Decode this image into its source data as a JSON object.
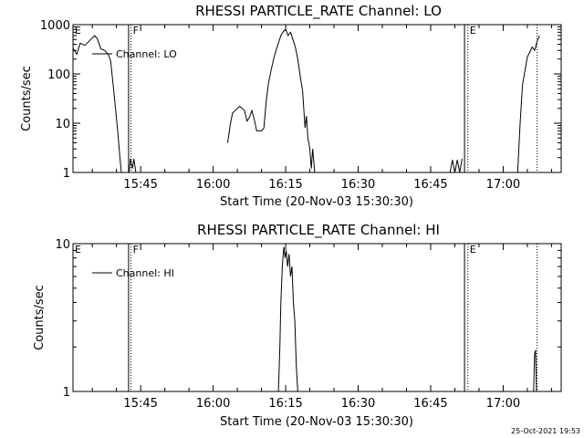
{
  "chart_data": [
    {
      "type": "line",
      "title": "RHESSI PARTICLE_RATE Channel: LO",
      "xlabel": "Start Time (20-Nov-03 15:30:30)",
      "ylabel": "Counts/sec",
      "yscale": "log",
      "ylim": [
        1,
        1000
      ],
      "xlim": [
        "15:31",
        "17:12"
      ],
      "grid": false,
      "legend": {
        "position": "top-left",
        "label": "Channel: LO"
      },
      "x_ticks": [
        {
          "t": "15:45",
          "label": "15:45"
        },
        {
          "t": "16:00",
          "label": "16:00"
        },
        {
          "t": "16:15",
          "label": "16:15"
        },
        {
          "t": "16:30",
          "label": "16:30"
        },
        {
          "t": "16:45",
          "label": "16:45"
        },
        {
          "t": "17:00",
          "label": "17:00"
        }
      ],
      "y_ticks": [
        {
          "v": 1,
          "label": "1"
        },
        {
          "v": 10,
          "label": "10"
        },
        {
          "v": 100,
          "label": "100"
        },
        {
          "v": 1000,
          "label": "1000"
        }
      ],
      "markers": [
        {
          "t": "15:31",
          "label": "E",
          "style": "solid"
        },
        {
          "t": "15:42.5",
          "label": "",
          "style": "solid"
        },
        {
          "t": "15:43",
          "label": "F",
          "style": "dotted"
        },
        {
          "t": "16:52",
          "label": "",
          "style": "solid"
        },
        {
          "t": "16:52.7",
          "label": "E",
          "style": "dotted"
        },
        {
          "t": "17:07",
          "label": "",
          "style": "dotted"
        }
      ],
      "series": [
        {
          "name": "Channel: LO",
          "points": [
            [
              "15:31",
              330
            ],
            [
              "15:31.8",
              250
            ],
            [
              "15:32.5",
              420
            ],
            [
              "15:33.5",
              380
            ],
            [
              "15:34.5",
              480
            ],
            [
              "15:35.5",
              600
            ],
            [
              "15:36",
              520
            ],
            [
              "15:36.8",
              320
            ],
            [
              "15:37.5",
              300
            ],
            [
              "15:38.3",
              250
            ],
            [
              "15:38.8",
              180
            ],
            [
              "15:39.3",
              60
            ],
            [
              "15:39.8",
              20
            ],
            [
              "15:40.3",
              6
            ],
            [
              "15:40.7",
              2
            ],
            [
              "15:41",
              1
            ]
          ]
        },
        {
          "name": "",
          "points": [
            [
              "15:42.6",
              1
            ],
            [
              "15:42.9",
              1.9
            ],
            [
              "15:43.3",
              1.2
            ],
            [
              "15:43.6",
              1.9
            ],
            [
              "15:44",
              1
            ]
          ]
        },
        {
          "name": "",
          "points": [
            [
              "16:03",
              4
            ],
            [
              "16:03.5",
              9
            ],
            [
              "16:04",
              16
            ],
            [
              "16:05",
              20
            ],
            [
              "16:05.5",
              22
            ],
            [
              "16:06",
              20
            ],
            [
              "16:06.5",
              18
            ],
            [
              "16:07",
              11
            ],
            [
              "16:07.5",
              13
            ],
            [
              "16:08",
              18
            ],
            [
              "16:08.5",
              12
            ],
            [
              "16:09",
              7
            ],
            [
              "16:10",
              7
            ],
            [
              "16:10.5",
              8
            ],
            [
              "16:11",
              30
            ],
            [
              "16:11.5",
              70
            ],
            [
              "16:12",
              120
            ],
            [
              "16:12.5",
              200
            ],
            [
              "16:13",
              300
            ],
            [
              "16:13.5",
              420
            ],
            [
              "16:14",
              600
            ],
            [
              "16:14.5",
              720
            ],
            [
              "16:15",
              800
            ],
            [
              "16:15.5",
              600
            ],
            [
              "16:16",
              700
            ],
            [
              "16:16.5",
              500
            ],
            [
              "16:17",
              350
            ],
            [
              "16:17.5",
              200
            ],
            [
              "16:18",
              90
            ],
            [
              "16:18.5",
              45
            ],
            [
              "16:19",
              8
            ],
            [
              "16:19.3",
              14
            ],
            [
              "16:19.6",
              5
            ],
            [
              "16:20",
              3
            ],
            [
              "16:20.3",
              1.2
            ],
            [
              "16:20.6",
              3
            ],
            [
              "16:21",
              1
            ]
          ]
        },
        {
          "name": "",
          "points": [
            [
              "16:49",
              1
            ],
            [
              "16:49.5",
              1.8
            ],
            [
              "16:50",
              1
            ],
            [
              "16:50.5",
              1.8
            ],
            [
              "16:51",
              1
            ],
            [
              "16:51.5",
              1.9
            ]
          ]
        },
        {
          "name": "",
          "points": [
            [
              "17:03",
              1
            ],
            [
              "17:03.5",
              10
            ],
            [
              "17:04",
              60
            ],
            [
              "17:05",
              220
            ],
            [
              "17:06",
              350
            ],
            [
              "17:06.5",
              300
            ],
            [
              "17:07",
              450
            ],
            [
              "17:07.5",
              600
            ]
          ]
        }
      ]
    },
    {
      "type": "line",
      "title": "RHESSI PARTICLE_RATE Channel: HI",
      "xlabel": "Start Time (20-Nov-03 15:30:30)",
      "ylabel": "Counts/sec",
      "yscale": "log",
      "ylim": [
        1,
        10
      ],
      "xlim": [
        "15:31",
        "17:12"
      ],
      "grid": false,
      "legend": {
        "position": "top-left",
        "label": "Channel: HI"
      },
      "x_ticks": [
        {
          "t": "15:45",
          "label": "15:45"
        },
        {
          "t": "16:00",
          "label": "16:00"
        },
        {
          "t": "16:15",
          "label": "16:15"
        },
        {
          "t": "16:30",
          "label": "16:30"
        },
        {
          "t": "16:45",
          "label": "16:45"
        },
        {
          "t": "17:00",
          "label": "17:00"
        }
      ],
      "y_ticks": [
        {
          "v": 1,
          "label": "1"
        },
        {
          "v": 10,
          "label": "10"
        }
      ],
      "markers": [
        {
          "t": "15:31",
          "label": "E",
          "style": "solid"
        },
        {
          "t": "15:42.5",
          "label": "",
          "style": "solid"
        },
        {
          "t": "15:43",
          "label": "F",
          "style": "dotted"
        },
        {
          "t": "16:52",
          "label": "",
          "style": "solid"
        },
        {
          "t": "16:52.7",
          "label": "E",
          "style": "dotted"
        },
        {
          "t": "17:07",
          "label": "",
          "style": "dotted"
        }
      ],
      "series": [
        {
          "name": "Channel: HI",
          "points": [
            [
              "16:13.5",
              1
            ],
            [
              "16:13.8",
              2
            ],
            [
              "16:14",
              4
            ],
            [
              "16:14.3",
              7
            ],
            [
              "16:14.6",
              9.5
            ],
            [
              "16:14.9",
              8
            ],
            [
              "16:15.1",
              9
            ],
            [
              "16:15.4",
              7
            ],
            [
              "16:15.7",
              8.5
            ],
            [
              "16:16",
              6
            ],
            [
              "16:16.3",
              7
            ],
            [
              "16:16.6",
              4
            ],
            [
              "16:16.9",
              3
            ],
            [
              "16:17.2",
              1.5
            ],
            [
              "16:17.5",
              1
            ]
          ]
        },
        {
          "name": "",
          "points": [
            [
              "17:06.3",
              1
            ],
            [
              "17:06.5",
              1.8
            ],
            [
              "17:06.7",
              1.9
            ],
            [
              "17:06.9",
              1
            ]
          ]
        }
      ]
    }
  ],
  "timestamp": "25-Oct-2021 19:53"
}
